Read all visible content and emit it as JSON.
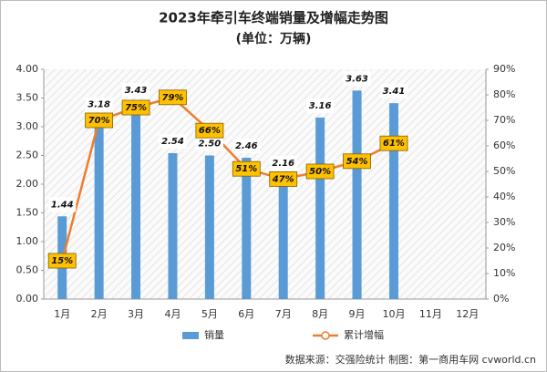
{
  "chart_data": {
    "type": "bar-line",
    "title": "2023年牵引车终端销量及增幅走势图",
    "subtitle": "(单位：万辆)",
    "source": "数据来源：交强险统计   制图：第一商用车网 cvworld.cn",
    "categories": [
      "1月",
      "2月",
      "3月",
      "4月",
      "5月",
      "6月",
      "7月",
      "8月",
      "9月",
      "10月",
      "11月",
      "12月"
    ],
    "series": [
      {
        "name": "销量",
        "type": "bar",
        "color": "#5b9bd5",
        "values": [
          1.44,
          3.18,
          3.43,
          2.54,
          2.5,
          2.46,
          2.16,
          3.16,
          3.63,
          3.41,
          null,
          null
        ],
        "value_labels": [
          "1.44",
          "3.18",
          "3.43",
          "2.54",
          "2.50",
          "2.46",
          "2.16",
          "3.16",
          "3.63",
          "3.41",
          null,
          null
        ]
      },
      {
        "name": "累计增幅",
        "type": "line",
        "axis": "y2",
        "color": "#ed7d31",
        "values": [
          15,
          70,
          75,
          79,
          66,
          51,
          47,
          50,
          54,
          61,
          null,
          null
        ],
        "value_labels": [
          "15%",
          "70%",
          "75%",
          "79%",
          "66%",
          "51%",
          "47%",
          "50%",
          "54%",
          "61%",
          null,
          null
        ]
      }
    ],
    "ylim": [
      0,
      4
    ],
    "yticks": [
      {
        "value": 0,
        "label": "0.00"
      },
      {
        "value": 0.5,
        "label": "0.50"
      },
      {
        "value": 1,
        "label": "1.00"
      },
      {
        "value": 1.5,
        "label": "1.50"
      },
      {
        "value": 2,
        "label": "2.00"
      },
      {
        "value": 2.5,
        "label": "2.50"
      },
      {
        "value": 3,
        "label": "3.00"
      },
      {
        "value": 3.5,
        "label": "3.50"
      },
      {
        "value": 4,
        "label": "4.00"
      }
    ],
    "y2lim": [
      0,
      90
    ],
    "y2ticks": [
      {
        "value": 0,
        "label": "0%"
      },
      {
        "value": 10,
        "label": "10%"
      },
      {
        "value": 20,
        "label": "20%"
      },
      {
        "value": 30,
        "label": "30%"
      },
      {
        "value": 40,
        "label": "40%"
      },
      {
        "value": 50,
        "label": "50%"
      },
      {
        "value": 60,
        "label": "60%"
      },
      {
        "value": 70,
        "label": "70%"
      },
      {
        "value": 80,
        "label": "80%"
      },
      {
        "value": 90,
        "label": "90%"
      }
    ]
  }
}
